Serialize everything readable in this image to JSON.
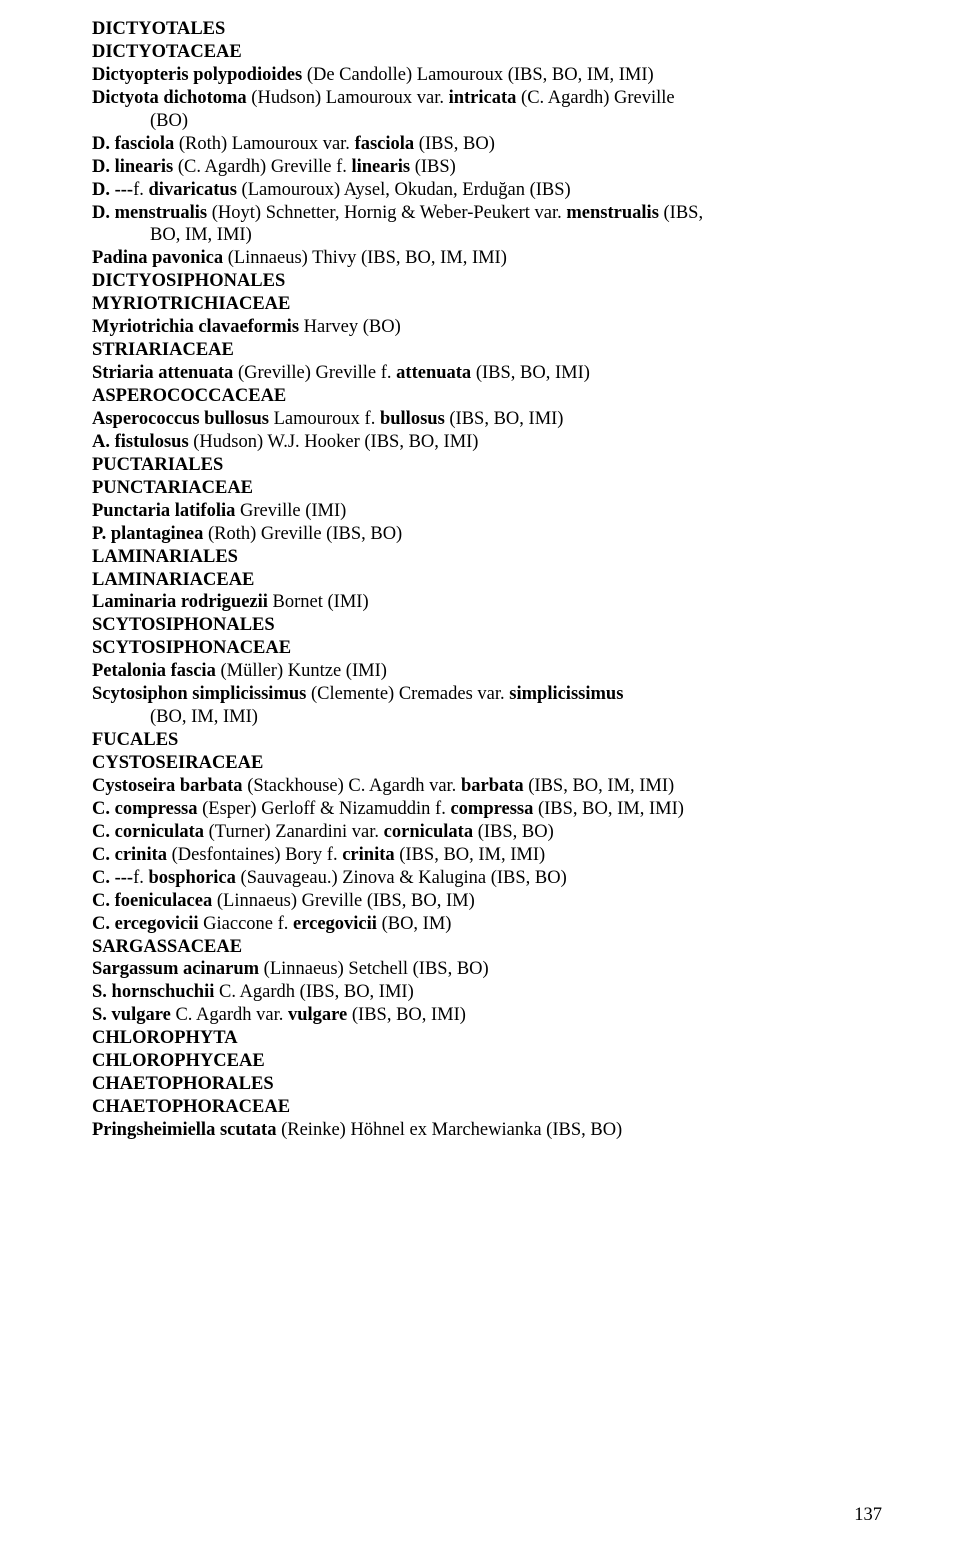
{
  "page_number": "137",
  "lines": [
    {
      "segs": [
        {
          "t": "DICTYOTALES",
          "b": true
        }
      ]
    },
    {
      "segs": [
        {
          "t": "DICTYOTACEAE",
          "b": true
        }
      ]
    },
    {
      "segs": [
        {
          "t": "Dictyopteris polypodioides ",
          "b": true
        },
        {
          "t": "(De Candolle) Lamouroux (IBS, BO, IM, IMI)"
        }
      ]
    },
    {
      "segs": [
        {
          "t": "Dictyota dichotoma ",
          "b": true
        },
        {
          "t": "(Hudson) Lamouroux var. "
        },
        {
          "t": "intricata ",
          "b": true
        },
        {
          "t": "(C. Agardh) Greville"
        }
      ]
    },
    {
      "indent": true,
      "segs": [
        {
          "t": "(BO)"
        }
      ]
    },
    {
      "segs": [
        {
          "t": "D. fasciola ",
          "b": true
        },
        {
          "t": "(Roth) Lamouroux var. "
        },
        {
          "t": "fasciola ",
          "b": true
        },
        {
          "t": "(IBS, BO)"
        }
      ]
    },
    {
      "segs": [
        {
          "t": "D. linearis ",
          "b": true
        },
        {
          "t": "(C. Agardh) Greville f. "
        },
        {
          "t": "linearis ",
          "b": true
        },
        {
          "t": "(IBS)"
        }
      ]
    },
    {
      "segs": [
        {
          "t": "D. ---",
          "b": true
        },
        {
          "t": "f. "
        },
        {
          "t": "divaricatus ",
          "b": true
        },
        {
          "t": "(Lamouroux) Aysel, Okudan, Erduğan (IBS)"
        }
      ]
    },
    {
      "segs": [
        {
          "t": "D. menstrualis ",
          "b": true
        },
        {
          "t": "(Hoyt) Schnetter, Hornig & Weber-Peukert var. "
        },
        {
          "t": "menstrualis ",
          "b": true
        },
        {
          "t": "(IBS,"
        }
      ]
    },
    {
      "indent": true,
      "segs": [
        {
          "t": "BO, IM, IMI)"
        }
      ]
    },
    {
      "segs": [
        {
          "t": "Padina pavonica ",
          "b": true
        },
        {
          "t": "(Linnaeus) Thivy (IBS, BO, IM, IMI)"
        }
      ]
    },
    {
      "segs": [
        {
          "t": "DICTYOSIPHONALES",
          "b": true
        }
      ]
    },
    {
      "segs": [
        {
          "t": "MYRIOTRICHIACEAE",
          "b": true
        }
      ]
    },
    {
      "segs": [
        {
          "t": "Myriotrichia clavaeformis ",
          "b": true
        },
        {
          "t": "Harvey (BO)"
        }
      ]
    },
    {
      "segs": [
        {
          "t": "STRIARIACEAE",
          "b": true
        }
      ]
    },
    {
      "segs": [
        {
          "t": "Striaria attenuata ",
          "b": true
        },
        {
          "t": "(Greville) Greville f. "
        },
        {
          "t": "attenuata ",
          "b": true
        },
        {
          "t": "(IBS, BO, IMI)"
        }
      ]
    },
    {
      "segs": [
        {
          "t": "ASPEROCOCCACEAE",
          "b": true
        }
      ]
    },
    {
      "segs": [
        {
          "t": "Asperococcus bullosus ",
          "b": true
        },
        {
          "t": "Lamouroux f. "
        },
        {
          "t": "bullosus ",
          "b": true
        },
        {
          "t": "(IBS, BO, IMI)"
        }
      ]
    },
    {
      "segs": [
        {
          "t": "A. fistulosus ",
          "b": true
        },
        {
          "t": "(Hudson) W.J. Hooker (IBS, BO, IMI)"
        }
      ]
    },
    {
      "segs": [
        {
          "t": "PUCTARIALES",
          "b": true
        }
      ]
    },
    {
      "segs": [
        {
          "t": "PUNCTARIACEAE",
          "b": true
        }
      ]
    },
    {
      "segs": [
        {
          "t": "Punctaria latifolia ",
          "b": true
        },
        {
          "t": "Greville (IMI)"
        }
      ]
    },
    {
      "segs": [
        {
          "t": "P. plantaginea ",
          "b": true
        },
        {
          "t": "(Roth) Greville (IBS, BO)"
        }
      ]
    },
    {
      "segs": [
        {
          "t": "LAMINARIALES",
          "b": true
        }
      ]
    },
    {
      "segs": [
        {
          "t": "LAMINARIACEAE",
          "b": true
        }
      ]
    },
    {
      "segs": [
        {
          "t": "Laminaria rodriguezii ",
          "b": true
        },
        {
          "t": "Bornet (IMI)"
        }
      ]
    },
    {
      "segs": [
        {
          "t": "SCYTOSIPHONALES",
          "b": true
        }
      ]
    },
    {
      "segs": [
        {
          "t": "SCYTOSIPHONACEAE",
          "b": true
        }
      ]
    },
    {
      "segs": [
        {
          "t": "Petalonia fascia ",
          "b": true
        },
        {
          "t": "(Müller) Kuntze (IMI)"
        }
      ]
    },
    {
      "segs": [
        {
          "t": "Scytosiphon simplicissimus ",
          "b": true
        },
        {
          "t": "(Clemente) Cremades var. "
        },
        {
          "t": "simplicissimus",
          "b": true
        }
      ]
    },
    {
      "indent": true,
      "segs": [
        {
          "t": "(BO, IM, IMI)"
        }
      ]
    },
    {
      "segs": [
        {
          "t": "FUCALES",
          "b": true
        }
      ]
    },
    {
      "segs": [
        {
          "t": "CYSTOSEIRACEAE",
          "b": true
        }
      ]
    },
    {
      "segs": [
        {
          "t": "Cystoseira barbata ",
          "b": true
        },
        {
          "t": "(Stackhouse) C. Agardh var. "
        },
        {
          "t": "barbata ",
          "b": true
        },
        {
          "t": "(IBS, BO, IM, IMI)"
        }
      ]
    },
    {
      "segs": [
        {
          "t": "C. compressa ",
          "b": true
        },
        {
          "t": "(Esper) Gerloff & Nizamuddin f. "
        },
        {
          "t": "compressa ",
          "b": true
        },
        {
          "t": "(IBS, BO, IM, IMI)"
        }
      ]
    },
    {
      "segs": [
        {
          "t": "C. corniculata ",
          "b": true
        },
        {
          "t": "(Turner) Zanardini var. "
        },
        {
          "t": "corniculata ",
          "b": true
        },
        {
          "t": "(IBS, BO)"
        }
      ]
    },
    {
      "segs": [
        {
          "t": "C. crinita ",
          "b": true
        },
        {
          "t": "(Desfontaines) Bory f. "
        },
        {
          "t": "crinita ",
          "b": true
        },
        {
          "t": "(IBS, BO, IM, IMI)"
        }
      ]
    },
    {
      "segs": [
        {
          "t": "C. ---",
          "b": true
        },
        {
          "t": "f. "
        },
        {
          "t": "bosphorica ",
          "b": true
        },
        {
          "t": "(Sauvageau.) Zinova & Kalugina (IBS, BO)"
        }
      ]
    },
    {
      "segs": [
        {
          "t": "C. foeniculacea ",
          "b": true
        },
        {
          "t": "(Linnaeus) Greville (IBS, BO, IM)"
        }
      ]
    },
    {
      "segs": [
        {
          "t": "C. ercegovicii ",
          "b": true
        },
        {
          "t": "Giaccone f. "
        },
        {
          "t": "ercegovicii ",
          "b": true
        },
        {
          "t": "(BO, IM)"
        }
      ]
    },
    {
      "segs": [
        {
          "t": "SARGASSACEAE",
          "b": true
        }
      ]
    },
    {
      "segs": [
        {
          "t": "Sargassum acinarum ",
          "b": true
        },
        {
          "t": "(Linnaeus) Setchell (IBS, BO)"
        }
      ]
    },
    {
      "segs": [
        {
          "t": "S. hornschuchii ",
          "b": true
        },
        {
          "t": "C. Agardh (IBS, BO, IMI)"
        }
      ]
    },
    {
      "segs": [
        {
          "t": "S. vulgare ",
          "b": true
        },
        {
          "t": "C. Agardh var. "
        },
        {
          "t": "vulgare ",
          "b": true
        },
        {
          "t": "(IBS, BO, IMI)"
        }
      ]
    },
    {
      "segs": [
        {
          "t": "CHLOROPHYTA",
          "b": true
        }
      ]
    },
    {
      "segs": [
        {
          "t": "CHLOROPHYCEAE",
          "b": true
        }
      ]
    },
    {
      "segs": [
        {
          "t": "CHAETOPHORALES",
          "b": true
        }
      ]
    },
    {
      "segs": [
        {
          "t": "CHAETOPHORACEAE",
          "b": true
        }
      ]
    },
    {
      "segs": [
        {
          "t": "Pringsheimiella scutata ",
          "b": true
        },
        {
          "t": "(Reinke) Höhnel ex Marchewianka (IBS, BO)"
        }
      ]
    }
  ]
}
